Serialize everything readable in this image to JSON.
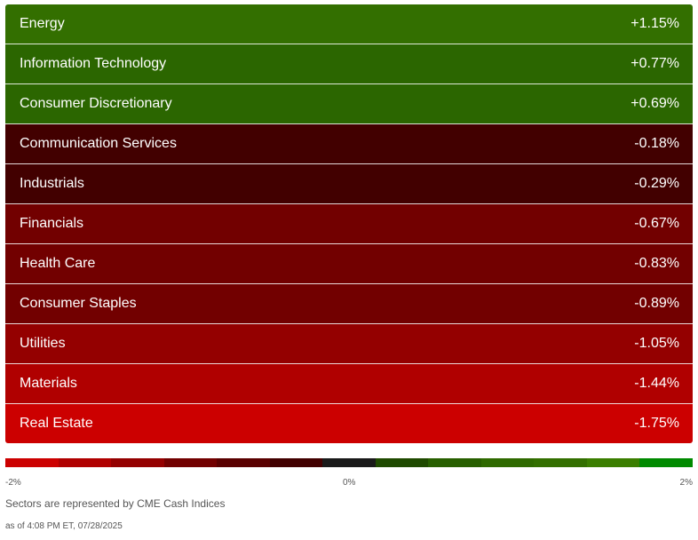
{
  "chart_data": {
    "type": "heatmap",
    "categories": [
      "Energy",
      "Information Technology",
      "Consumer Discretionary",
      "Communication Services",
      "Industrials",
      "Financials",
      "Health Care",
      "Consumer Staples",
      "Utilities",
      "Materials",
      "Real Estate"
    ],
    "values": [
      1.15,
      0.77,
      0.69,
      -0.18,
      -0.29,
      -0.67,
      -0.83,
      -0.89,
      -1.05,
      -1.44,
      -1.75
    ],
    "value_labels": [
      "+1.15%",
      "+0.77%",
      "+0.69%",
      "-0.18%",
      "-0.29%",
      "-0.67%",
      "-0.83%",
      "-0.89%",
      "-1.05%",
      "-1.44%",
      "-1.75%"
    ],
    "row_colors": [
      "#336f00",
      "#2b6600",
      "#2b6600",
      "#420000",
      "#420000",
      "#720000",
      "#720000",
      "#720000",
      "#940000",
      "#b00000",
      "#cc0000"
    ],
    "scale": {
      "min_label": "-2%",
      "mid_label": "0%",
      "max_label": "2%",
      "colors": [
        "#cc0000",
        "#b00000",
        "#940000",
        "#720000",
        "#5a0000",
        "#420000",
        "#1a1a1a",
        "#1f4a00",
        "#285f00",
        "#2f6a00",
        "#336f00",
        "#3b7e00",
        "#008a00"
      ]
    }
  },
  "footer": {
    "source_note": "Sectors are represented by CME Cash Indices",
    "timestamp": "as of 4:08 PM ET, 07/28/2025"
  }
}
